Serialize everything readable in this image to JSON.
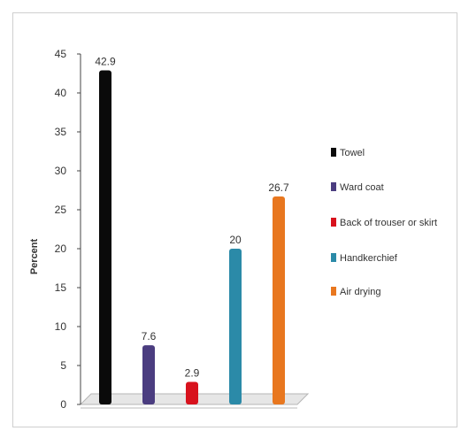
{
  "chart_data": {
    "type": "bar",
    "title": "",
    "xlabel": "",
    "ylabel": "Percent",
    "ylim": [
      0,
      45
    ],
    "yticks": [
      0,
      5,
      10,
      15,
      20,
      25,
      30,
      35,
      40,
      45
    ],
    "grid": false,
    "legend_position": "right",
    "categories": [
      "Towel",
      "Ward coat",
      "Back of trouser or skirt",
      "Handkerchief",
      "Air drying"
    ],
    "values": [
      42.9,
      7.6,
      2.9,
      20,
      26.7
    ],
    "value_labels": [
      "42.9",
      "7.6",
      "2.9",
      "20",
      "26.7"
    ],
    "colors": [
      "#0a0a0a",
      "#4b3d80",
      "#d8121d",
      "#2b8aa8",
      "#e8771f"
    ]
  }
}
